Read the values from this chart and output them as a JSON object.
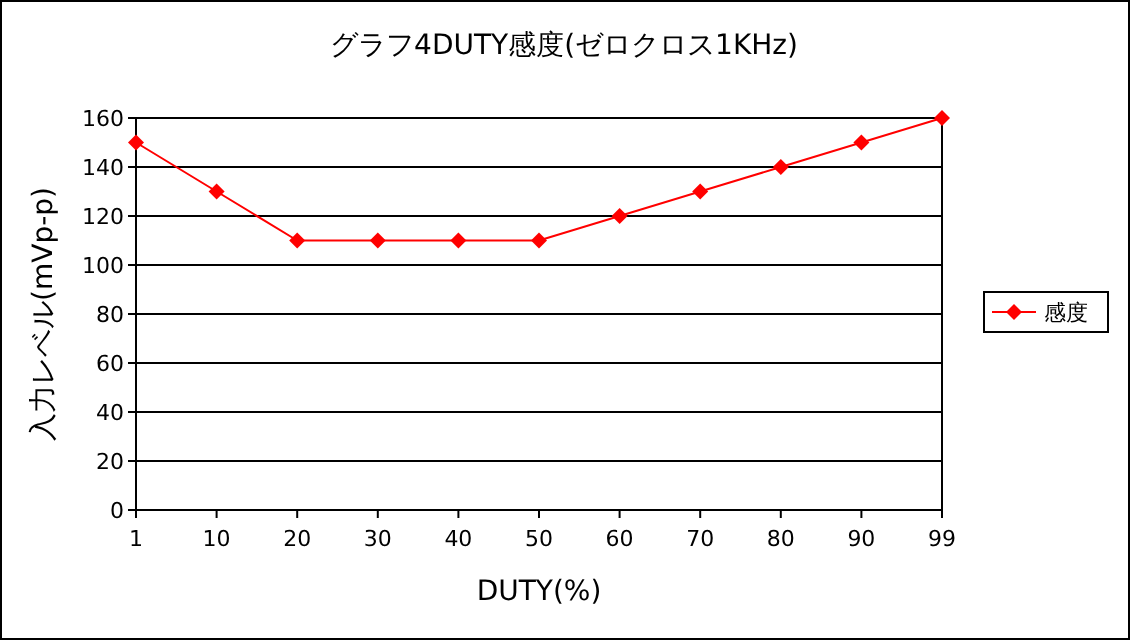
{
  "chart_data": {
    "type": "line",
    "title": "グラフ4DUTY感度(ゼロクロス1KHz)",
    "xlabel": "DUTY(%)",
    "ylabel": "入力レベル(mVp-p)",
    "categories": [
      "1",
      "10",
      "20",
      "30",
      "40",
      "50",
      "60",
      "70",
      "80",
      "90",
      "99"
    ],
    "series": [
      {
        "name": "感度",
        "color": "#ff0000",
        "values": [
          150,
          130,
          110,
          110,
          110,
          110,
          120,
          130,
          140,
          150,
          160
        ]
      }
    ],
    "ylim": [
      0,
      160
    ],
    "yticks": [
      0,
      20,
      40,
      60,
      80,
      100,
      120,
      140,
      160
    ],
    "grid": "y",
    "legend": "right",
    "marker": "diamond",
    "line_style": "solid"
  }
}
